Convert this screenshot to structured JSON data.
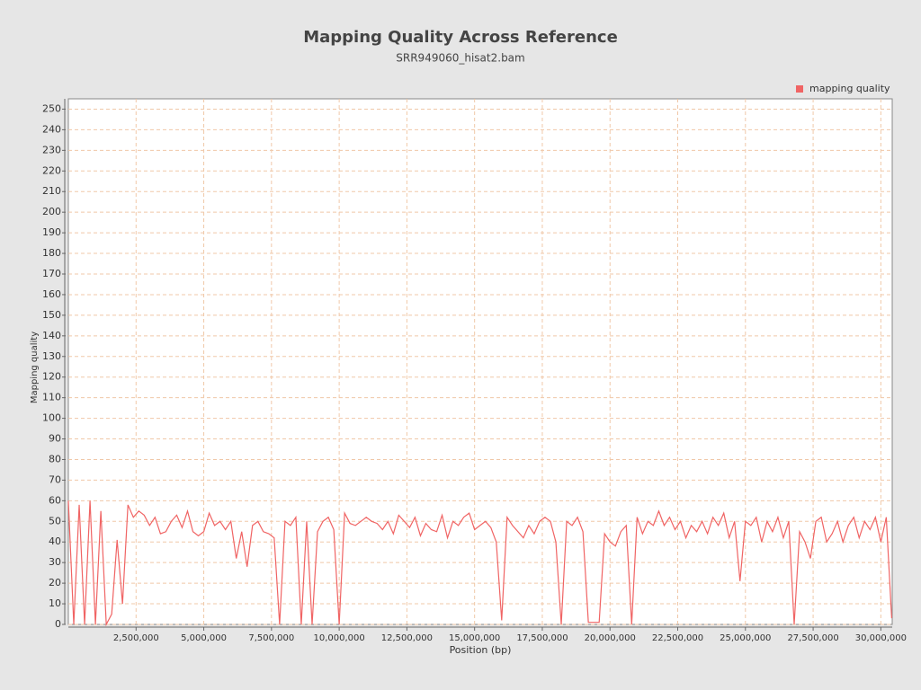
{
  "chart_data": {
    "type": "line",
    "title": "Mapping Quality Across Reference",
    "subtitle": "SRR949060_hisat2.bam",
    "x_label": "Position (bp)",
    "y_label": "Mapping quality",
    "x": [
      0,
      200000,
      400000,
      600000,
      800000,
      1000000,
      1200000,
      1400000,
      1600000,
      1800000,
      2000000,
      2200000,
      2400000,
      2600000,
      2800000,
      3000000,
      3200000,
      3400000,
      3600000,
      3800000,
      4000000,
      4200000,
      4400000,
      4600000,
      4800000,
      5000000,
      5200000,
      5400000,
      5600000,
      5800000,
      6000000,
      6200000,
      6400000,
      6600000,
      6800000,
      7000000,
      7200000,
      7400000,
      7600000,
      7800000,
      8000000,
      8200000,
      8400000,
      8600000,
      8800000,
      9000000,
      9200000,
      9400000,
      9600000,
      9800000,
      10000000,
      10200000,
      10400000,
      10600000,
      10800000,
      11000000,
      11200000,
      11400000,
      11600000,
      11800000,
      12000000,
      12200000,
      12400000,
      12600000,
      12800000,
      13000000,
      13200000,
      13400000,
      13600000,
      13800000,
      14000000,
      14200000,
      14400000,
      14600000,
      14800000,
      15000000,
      15200000,
      15400000,
      15600000,
      15800000,
      16000000,
      16200000,
      16400000,
      16600000,
      16800000,
      17000000,
      17200000,
      17400000,
      17600000,
      17800000,
      18000000,
      18200000,
      18400000,
      18600000,
      18800000,
      19000000,
      19200000,
      19400000,
      19600000,
      19800000,
      20000000,
      20200000,
      20400000,
      20600000,
      20800000,
      21000000,
      21200000,
      21400000,
      21600000,
      21800000,
      22000000,
      22200000,
      22400000,
      22600000,
      22800000,
      23000000,
      23200000,
      23400000,
      23600000,
      23800000,
      24000000,
      24200000,
      24400000,
      24600000,
      24800000,
      25000000,
      25200000,
      25400000,
      25600000,
      25800000,
      26000000,
      26200000,
      26400000,
      26600000,
      26800000,
      27000000,
      27200000,
      27400000,
      27600000,
      27800000,
      28000000,
      28200000,
      28400000,
      28600000,
      28800000,
      29000000,
      29200000,
      29400000,
      29600000,
      29800000,
      30000000,
      30200000,
      30400000
    ],
    "series": [
      {
        "name": "mapping quality",
        "color": "#f06464",
        "values": [
          60,
          0,
          58,
          0,
          60,
          0,
          55,
          0,
          5,
          41,
          10,
          58,
          52,
          55,
          53,
          48,
          52,
          44,
          45,
          50,
          53,
          47,
          55,
          45,
          43,
          45,
          54,
          48,
          50,
          46,
          50,
          32,
          45,
          28,
          48,
          50,
          45,
          44,
          42,
          0,
          50,
          48,
          52,
          0,
          50,
          0,
          45,
          50,
          52,
          46,
          0,
          54,
          49,
          48,
          50,
          52,
          50,
          49,
          46,
          50,
          44,
          53,
          50,
          47,
          52,
          43,
          49,
          46,
          45,
          53,
          42,
          50,
          48,
          52,
          54,
          46,
          48,
          50,
          47,
          40,
          2,
          52,
          48,
          45,
          42,
          48,
          44,
          50,
          52,
          50,
          40,
          0,
          50,
          48,
          52,
          45,
          1,
          1,
          1,
          44,
          40,
          38,
          45,
          48,
          0,
          52,
          44,
          50,
          48,
          55,
          48,
          52,
          46,
          50,
          42,
          48,
          45,
          50,
          44,
          52,
          48,
          54,
          42,
          50,
          21,
          50,
          48,
          52,
          40,
          50,
          45,
          52,
          42,
          50,
          0,
          45,
          40,
          32,
          50,
          52,
          40,
          44,
          50,
          40,
          48,
          52,
          42,
          50,
          46,
          52,
          40,
          52,
          3
        ]
      }
    ],
    "xlim": [
      0,
      30420000
    ],
    "ylim": [
      0,
      255
    ],
    "xticks": [
      {
        "value": 2500000,
        "label": "2,500,000"
      },
      {
        "value": 5000000,
        "label": "5,000,000"
      },
      {
        "value": 7500000,
        "label": "7,500,000"
      },
      {
        "value": 10000000,
        "label": "10,000,000"
      },
      {
        "value": 12500000,
        "label": "12,500,000"
      },
      {
        "value": 15000000,
        "label": "15,000,000"
      },
      {
        "value": 17500000,
        "label": "17,500,000"
      },
      {
        "value": 20000000,
        "label": "20,000,000"
      },
      {
        "value": 22500000,
        "label": "22,500,000"
      },
      {
        "value": 25000000,
        "label": "25,000,000"
      },
      {
        "value": 27500000,
        "label": "27,500,000"
      },
      {
        "value": 30000000,
        "label": "30,000,000"
      }
    ],
    "yticks": [
      0,
      10,
      20,
      30,
      40,
      50,
      60,
      70,
      80,
      90,
      100,
      110,
      120,
      130,
      140,
      150,
      160,
      170,
      180,
      190,
      200,
      210,
      220,
      230,
      240,
      250
    ],
    "grid": true,
    "legend": "top-right"
  }
}
